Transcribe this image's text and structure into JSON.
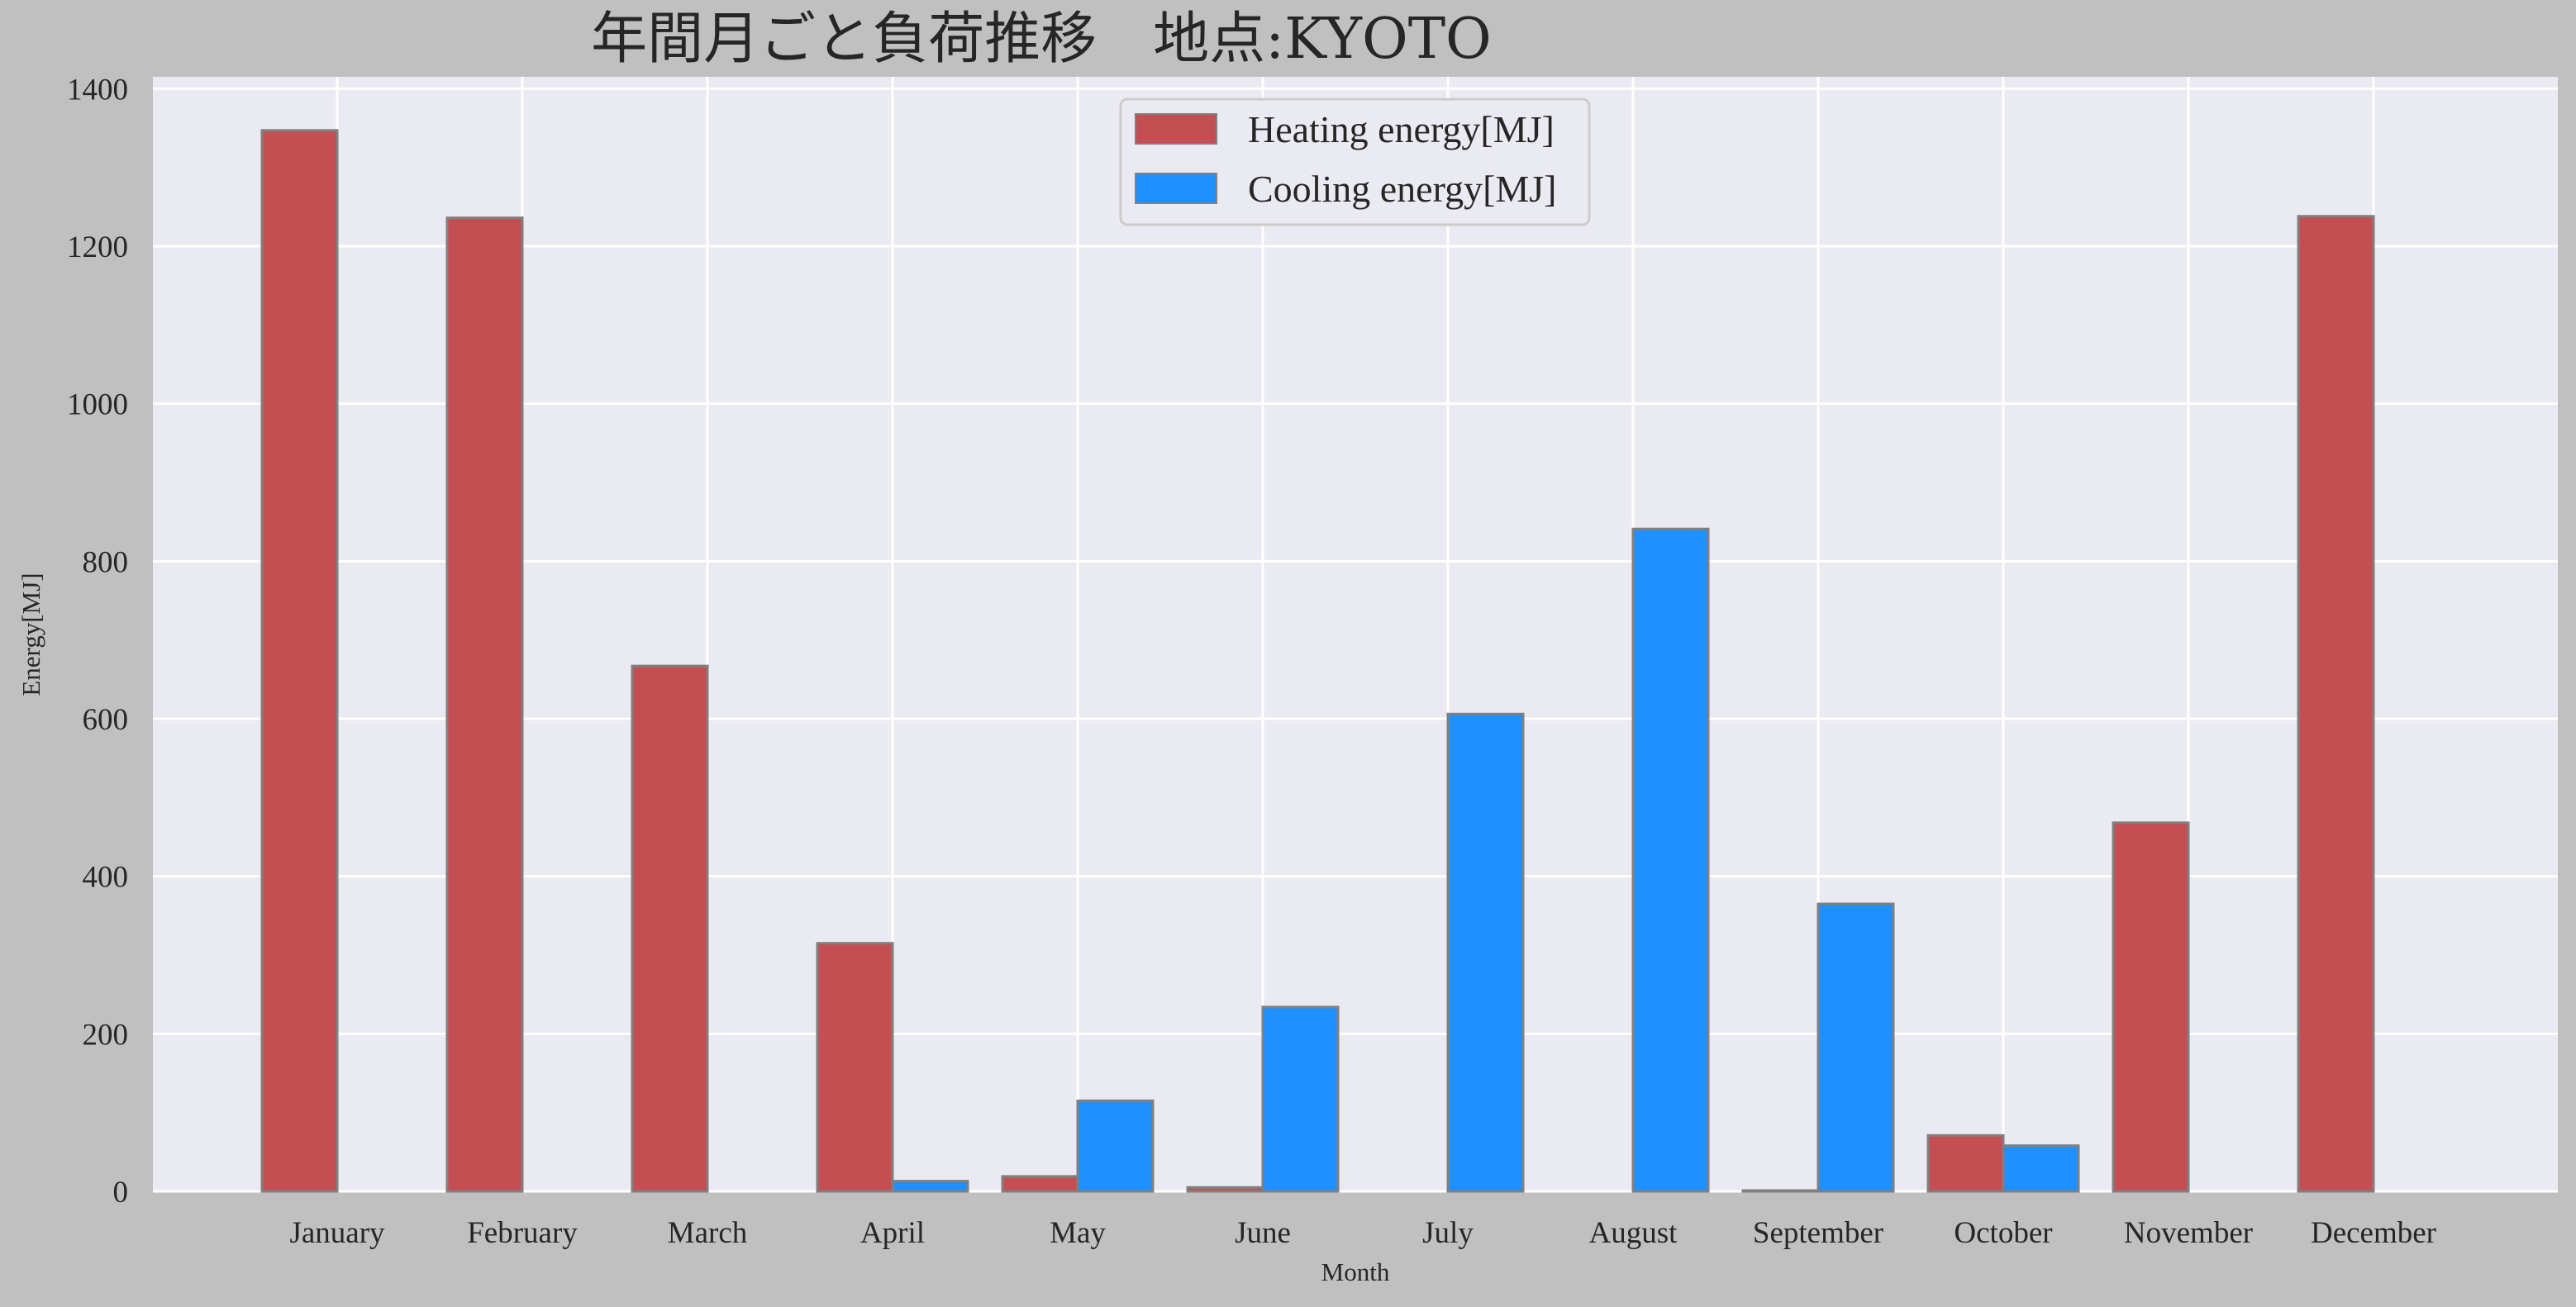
{
  "chart_data": {
    "type": "bar",
    "title": "年間月ごと負荷推移　地点:KYOTO",
    "xlabel": "Month",
    "ylabel": "Energy[MJ]",
    "ylim": [
      0,
      1415
    ],
    "yticks": [
      0,
      200,
      400,
      600,
      800,
      1000,
      1200,
      1400
    ],
    "grid": true,
    "legend_position": "top-center",
    "categories": [
      "January",
      "February",
      "March",
      "April",
      "May",
      "June",
      "July",
      "August",
      "September",
      "October",
      "November",
      "December"
    ],
    "series": [
      {
        "name": "Heating energy[MJ]",
        "color": "#c44e52",
        "values": [
          1347,
          1236,
          667,
          315,
          19,
          5,
          0,
          0,
          1,
          71,
          468,
          1238
        ]
      },
      {
        "name": "Cooling energy[MJ]",
        "color": "#1e90ff",
        "values": [
          0,
          0,
          0,
          13,
          115,
          234,
          606,
          841,
          365,
          58,
          0,
          0
        ]
      }
    ]
  }
}
